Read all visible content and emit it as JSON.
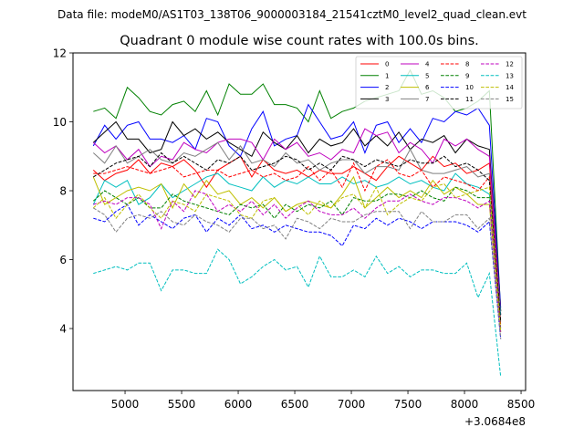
{
  "chart_data": {
    "type": "line",
    "suptitle": "Data file: modeM0/AS1T03_138T06_9000003184_21541cztM0_level2_quad_clean.evt",
    "title": "Quadrant 0 module wise count rates with 100.0s bins.",
    "xlabel": "",
    "ylabel": "",
    "x_offset_label": "+3.0684e8",
    "xlim": [
      4540,
      8540
    ],
    "ylim": [
      2.2,
      12.0
    ],
    "xticks": [
      5000,
      5500,
      6000,
      6500,
      7000,
      7500,
      8000,
      8500
    ],
    "yticks": [
      4,
      6,
      8,
      10,
      12
    ],
    "grid": false,
    "legend_position": "top-right",
    "x": [
      4720,
      4820,
      4920,
      5020,
      5120,
      5220,
      5320,
      5420,
      5520,
      5620,
      5720,
      5820,
      5920,
      6020,
      6120,
      6220,
      6320,
      6420,
      6520,
      6620,
      6720,
      6820,
      6920,
      7020,
      7120,
      7220,
      7320,
      7420,
      7520,
      7620,
      7720,
      7820,
      7920,
      8020,
      8120,
      8220,
      8320
    ],
    "series": [
      {
        "name": "0",
        "color": "#ff0000",
        "dash": "solid",
        "values": [
          8.6,
          8.3,
          8.5,
          8.6,
          8.9,
          8.5,
          8.8,
          8.7,
          8.9,
          8.6,
          8.1,
          8.6,
          8.8,
          9.0,
          8.4,
          8.9,
          8.6,
          8.5,
          8.6,
          8.4,
          8.6,
          8.5,
          8.5,
          8.7,
          8.5,
          8.3,
          8.7,
          9.0,
          8.8,
          8.6,
          9.0,
          8.7,
          8.8,
          8.5,
          8.6,
          8.8,
          4.4
        ]
      },
      {
        "name": "1",
        "color": "#008000",
        "dash": "solid",
        "values": [
          10.3,
          10.4,
          10.1,
          11.0,
          10.7,
          10.3,
          10.2,
          10.5,
          10.6,
          10.3,
          10.9,
          10.2,
          11.1,
          10.8,
          10.8,
          11.1,
          10.5,
          10.5,
          10.4,
          10.0,
          10.9,
          10.1,
          10.3,
          10.4,
          10.6,
          10.7,
          10.8,
          10.9,
          11.5,
          10.8,
          10.9,
          10.7,
          10.3,
          10.4,
          10.6,
          10.9,
          4.5
        ]
      },
      {
        "name": "2",
        "color": "#0000ff",
        "dash": "solid",
        "values": [
          9.3,
          9.9,
          9.5,
          9.9,
          10.0,
          9.5,
          9.5,
          9.4,
          9.6,
          9.2,
          10.1,
          10.0,
          9.3,
          9.0,
          9.8,
          10.3,
          9.3,
          9.5,
          9.6,
          10.5,
          10.0,
          9.5,
          9.6,
          10.0,
          9.1,
          9.9,
          10.0,
          9.4,
          9.8,
          9.4,
          10.1,
          10.0,
          10.3,
          10.2,
          10.4,
          9.9,
          4.6
        ]
      },
      {
        "name": "3",
        "color": "#000000",
        "dash": "solid",
        "values": [
          9.4,
          9.7,
          10.0,
          9.5,
          9.5,
          9.1,
          9.2,
          10.0,
          9.6,
          9.8,
          9.5,
          9.7,
          9.4,
          9.2,
          9.0,
          9.7,
          9.4,
          9.2,
          9.6,
          9.1,
          9.5,
          9.3,
          9.4,
          9.8,
          9.3,
          9.6,
          9.3,
          9.7,
          9.2,
          9.5,
          9.4,
          9.6,
          9.1,
          9.5,
          9.3,
          9.2,
          4.5
        ]
      },
      {
        "name": "4",
        "color": "#bf00bf",
        "dash": "solid",
        "values": [
          9.4,
          9.1,
          9.3,
          8.9,
          9.2,
          8.7,
          9.0,
          8.9,
          9.4,
          9.2,
          9.1,
          9.4,
          9.5,
          9.5,
          9.4,
          8.9,
          9.5,
          9.2,
          9.4,
          9.0,
          9.1,
          8.9,
          9.2,
          9.1,
          9.8,
          9.6,
          9.7,
          9.1,
          9.4,
          9.2,
          8.8,
          9.5,
          9.3,
          9.5,
          9.2,
          9.0,
          4.4
        ]
      },
      {
        "name": "5",
        "color": "#00bfbf",
        "dash": "solid",
        "values": [
          7.6,
          8.3,
          8.1,
          8.3,
          7.6,
          7.8,
          8.2,
          7.8,
          8.0,
          8.2,
          8.4,
          8.5,
          8.2,
          8.1,
          8.0,
          8.4,
          8.1,
          8.3,
          8.2,
          8.4,
          8.2,
          8.2,
          8.4,
          8.2,
          8.3,
          8.1,
          8.2,
          8.4,
          8.2,
          8.3,
          8.1,
          8.0,
          8.5,
          8.2,
          8.1,
          7.9,
          4.4
        ]
      },
      {
        "name": "6",
        "color": "#bfbf00",
        "dash": "solid",
        "values": [
          8.4,
          7.6,
          7.8,
          8.0,
          8.1,
          8.0,
          8.2,
          7.5,
          8.2,
          7.8,
          8.3,
          7.9,
          8.0,
          7.6,
          7.8,
          7.5,
          7.8,
          7.4,
          7.6,
          7.7,
          7.6,
          7.5,
          7.9,
          8.4,
          7.5,
          7.8,
          8.1,
          7.8,
          8.0,
          7.8,
          8.3,
          7.9,
          8.1,
          7.9,
          7.6,
          7.6,
          3.9
        ]
      },
      {
        "name": "7",
        "color": "#808080",
        "dash": "solid",
        "values": [
          9.1,
          8.8,
          9.3,
          8.8,
          9.0,
          9.2,
          8.9,
          8.8,
          9.1,
          9.0,
          9.2,
          9.4,
          8.9,
          9.3,
          8.8,
          8.9,
          8.7,
          9.1,
          8.8,
          8.9,
          8.6,
          8.8,
          8.9,
          8.9,
          8.5,
          8.7,
          8.7,
          8.6,
          9.2,
          8.6,
          8.5,
          8.5,
          8.6,
          8.7,
          8.4,
          8.5,
          4.2
        ]
      },
      {
        "name": "8",
        "color": "#ff0000",
        "dash": "dashed",
        "values": [
          8.5,
          8.5,
          8.6,
          8.7,
          8.6,
          8.5,
          8.6,
          8.7,
          8.4,
          8.5,
          8.6,
          8.6,
          8.4,
          8.5,
          8.6,
          8.4,
          8.5,
          8.3,
          8.4,
          8.7,
          8.3,
          8.6,
          8.1,
          8.8,
          8.0,
          8.7,
          8.9,
          8.5,
          8.4,
          8.6,
          8.1,
          8.4,
          8.3,
          8.2,
          8.0,
          8.4,
          4.1
        ]
      },
      {
        "name": "9",
        "color": "#008000",
        "dash": "dashed",
        "values": [
          7.7,
          8.0,
          7.8,
          7.6,
          7.8,
          7.5,
          7.5,
          7.9,
          7.7,
          7.6,
          7.5,
          7.4,
          7.3,
          7.6,
          7.5,
          7.6,
          7.2,
          7.6,
          7.4,
          7.6,
          7.5,
          7.7,
          7.3,
          7.8,
          7.7,
          7.7,
          7.9,
          7.9,
          7.8,
          8.0,
          7.8,
          7.7,
          8.1,
          8.0,
          7.8,
          7.8,
          4.0
        ]
      },
      {
        "name": "10",
        "color": "#0000ff",
        "dash": "dashed",
        "values": [
          7.2,
          7.1,
          7.4,
          7.6,
          7.0,
          7.3,
          7.1,
          6.9,
          7.2,
          7.3,
          6.8,
          7.2,
          7.0,
          7.3,
          6.9,
          7.0,
          6.8,
          7.0,
          6.9,
          6.8,
          6.8,
          6.7,
          6.4,
          7.0,
          6.9,
          7.2,
          7.0,
          7.2,
          7.1,
          6.9,
          7.1,
          7.1,
          7.1,
          7.0,
          6.8,
          7.1,
          3.7
        ]
      },
      {
        "name": "11",
        "color": "#000000",
        "dash": "dashed",
        "values": [
          8.4,
          8.6,
          8.8,
          8.9,
          9.0,
          8.7,
          9.1,
          8.8,
          9.0,
          8.8,
          8.6,
          8.9,
          8.8,
          9.0,
          8.6,
          8.7,
          8.8,
          9.0,
          8.9,
          8.6,
          8.8,
          8.6,
          9.0,
          8.9,
          8.7,
          8.9,
          8.8,
          8.7,
          8.9,
          8.8,
          8.8,
          9.0,
          8.7,
          8.8,
          8.6,
          8.3,
          4.2
        ]
      },
      {
        "name": "12",
        "color": "#bf00bf",
        "dash": "dashed",
        "values": [
          7.6,
          7.7,
          7.6,
          7.8,
          7.8,
          7.6,
          6.9,
          7.7,
          7.4,
          8.0,
          7.9,
          7.4,
          7.6,
          7.4,
          7.7,
          7.3,
          7.6,
          7.2,
          7.5,
          7.7,
          7.4,
          7.3,
          7.3,
          7.5,
          7.2,
          7.5,
          7.7,
          7.7,
          7.9,
          7.7,
          7.6,
          7.8,
          7.8,
          7.7,
          7.5,
          7.7,
          3.9
        ]
      },
      {
        "name": "13",
        "color": "#00bfbf",
        "dash": "dashed",
        "values": [
          5.6,
          5.7,
          5.8,
          5.7,
          5.9,
          5.9,
          5.1,
          5.7,
          5.7,
          5.6,
          5.6,
          6.3,
          6.0,
          5.3,
          5.5,
          5.8,
          6.0,
          5.7,
          5.8,
          5.2,
          6.1,
          5.5,
          5.5,
          5.7,
          5.5,
          6.1,
          5.6,
          5.8,
          5.5,
          5.7,
          5.7,
          5.6,
          5.6,
          5.9,
          4.9,
          5.6,
          2.6
        ]
      },
      {
        "name": "14",
        "color": "#bfbf00",
        "dash": "dashed",
        "values": [
          7.5,
          7.8,
          7.2,
          7.6,
          7.9,
          7.5,
          7.2,
          7.7,
          7.6,
          7.4,
          7.9,
          7.8,
          7.7,
          7.3,
          7.2,
          7.7,
          7.8,
          7.4,
          7.6,
          7.3,
          7.7,
          7.5,
          7.8,
          7.9,
          7.5,
          8.1,
          7.3,
          7.6,
          7.8,
          7.7,
          8.1,
          8.2,
          7.8,
          7.9,
          8.0,
          8.1,
          3.9
        ]
      },
      {
        "name": "15",
        "color": "#808080",
        "dash": "dashed",
        "values": [
          7.5,
          7.3,
          6.8,
          7.2,
          7.3,
          7.2,
          7.4,
          7.1,
          7.0,
          7.3,
          7.1,
          7.0,
          6.8,
          7.2,
          7.2,
          6.9,
          7.0,
          6.6,
          7.2,
          7.1,
          6.9,
          7.2,
          7.1,
          7.1,
          7.3,
          7.4,
          7.4,
          7.4,
          6.9,
          7.4,
          7.1,
          7.1,
          7.3,
          7.3,
          6.9,
          7.2,
          3.7
        ]
      }
    ]
  }
}
